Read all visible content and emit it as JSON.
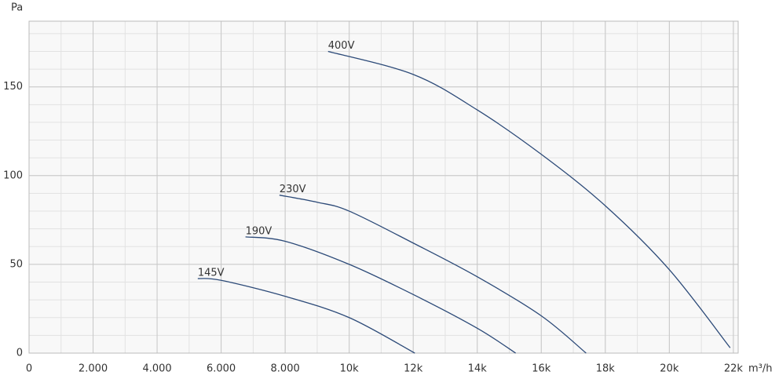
{
  "chart_data": {
    "type": "line",
    "y_label": "Pa",
    "x_label": "m³/h",
    "xlim": [
      0,
      22150
    ],
    "ylim": [
      0,
      187
    ],
    "xticks": [
      0,
      {
        "value": 2000,
        "label": "2.000"
      },
      {
        "value": 4000,
        "label": "4.000"
      },
      {
        "value": 6000,
        "label": "6.000"
      },
      {
        "value": 8000,
        "label": "8.000"
      },
      {
        "value": 10000,
        "label": "10k"
      },
      {
        "value": 12000,
        "label": "12k"
      },
      {
        "value": 14000,
        "label": "14k"
      },
      {
        "value": 16000,
        "label": "16k"
      },
      {
        "value": 18000,
        "label": "18k"
      },
      {
        "value": 20000,
        "label": "20k"
      },
      {
        "value": 22000,
        "label": "22k"
      }
    ],
    "yticks": [
      0,
      50,
      100,
      150
    ],
    "grid": true,
    "series": [
      {
        "name": "400V",
        "color": "#2c4a78",
        "x": [
          9340,
          12000,
          14000,
          16000,
          18000,
          20000,
          21900
        ],
        "values": [
          170,
          157,
          137,
          112,
          83,
          47,
          3
        ]
      },
      {
        "name": "230V",
        "color": "#2c4a78",
        "x": [
          7820,
          9000,
          10000,
          12000,
          14000,
          16000,
          17400
        ],
        "values": [
          89,
          85,
          80,
          62,
          43,
          21,
          0
        ]
      },
      {
        "name": "190V",
        "color": "#2c4a78",
        "x": [
          6760,
          8000,
          10000,
          12000,
          14000,
          15200
        ],
        "values": [
          65.5,
          63,
          50,
          33,
          14,
          0
        ]
      },
      {
        "name": "145V",
        "color": "#2c4a78",
        "x": [
          5270,
          6000,
          8000,
          10000,
          12050
        ],
        "values": [
          42,
          41,
          32,
          20,
          0
        ]
      }
    ]
  }
}
